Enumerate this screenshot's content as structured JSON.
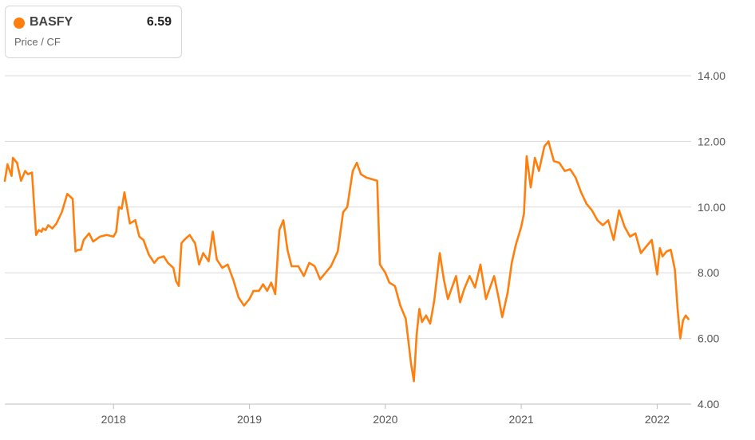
{
  "legend": {
    "ticker": "BASFY",
    "value": "6.59",
    "metric": "Price / CF",
    "color": "#ff7f0e"
  },
  "chart_data": {
    "type": "line",
    "title": "",
    "xlabel": "",
    "ylabel": "",
    "ylim": [
      4,
      14
    ],
    "xlim": [
      2017.2,
      2022.25
    ],
    "y_ticks": [
      "4.00",
      "6.00",
      "8.00",
      "10.00",
      "12.00",
      "14.00"
    ],
    "x_ticks": [
      "2018",
      "2019",
      "2020",
      "2021",
      "2022"
    ],
    "grid": true,
    "legend_position": "top-left",
    "series": [
      {
        "name": "BASFY",
        "color": "#ff7f0e",
        "x": [
          2017.2,
          2017.22,
          2017.25,
          2017.26,
          2017.29,
          2017.32,
          2017.35,
          2017.37,
          2017.4,
          2017.43,
          2017.45,
          2017.47,
          2017.48,
          2017.5,
          2017.52,
          2017.55,
          2017.58,
          2017.62,
          2017.66,
          2017.7,
          2017.72,
          2017.74,
          2017.76,
          2017.78,
          2017.82,
          2017.85,
          2017.9,
          2017.95,
          2018.0,
          2018.02,
          2018.04,
          2018.06,
          2018.08,
          2018.12,
          2018.16,
          2018.19,
          2018.22,
          2018.26,
          2018.3,
          2018.33,
          2018.37,
          2018.4,
          2018.44,
          2018.46,
          2018.48,
          2018.5,
          2018.52,
          2018.56,
          2018.6,
          2018.63,
          2018.66,
          2018.7,
          2018.73,
          2018.76,
          2018.8,
          2018.84,
          2018.88,
          2018.92,
          2018.96,
          2019.0,
          2019.03,
          2019.07,
          2019.1,
          2019.13,
          2019.16,
          2019.19,
          2019.22,
          2019.25,
          2019.28,
          2019.31,
          2019.36,
          2019.4,
          2019.44,
          2019.48,
          2019.52,
          2019.56,
          2019.6,
          2019.65,
          2019.69,
          2019.72,
          2019.76,
          2019.79,
          2019.82,
          2019.86,
          2019.9,
          2019.94,
          2019.96,
          2020.0,
          2020.03,
          2020.07,
          2020.11,
          2020.15,
          2020.19,
          2020.21,
          2020.23,
          2020.25,
          2020.27,
          2020.3,
          2020.33,
          2020.36,
          2020.4,
          2020.43,
          2020.46,
          2020.49,
          2020.52,
          2020.55,
          2020.58,
          2020.62,
          2020.66,
          2020.7,
          2020.74,
          2020.77,
          2020.8,
          2020.83,
          2020.86,
          2020.9,
          2020.93,
          2020.96,
          2021.0,
          2021.02,
          2021.04,
          2021.07,
          2021.1,
          2021.13,
          2021.17,
          2021.2,
          2021.24,
          2021.28,
          2021.32,
          2021.36,
          2021.4,
          2021.44,
          2021.48,
          2021.52,
          2021.56,
          2021.6,
          2021.64,
          2021.68,
          2021.72,
          2021.76,
          2021.8,
          2021.84,
          2021.88,
          2021.92,
          2021.96,
          2022.0,
          2022.02,
          2022.04,
          2022.07,
          2022.1,
          2022.13,
          2022.15,
          2022.17,
          2022.19,
          2022.21,
          2022.23
        ],
        "y": [
          10.8,
          11.3,
          10.95,
          11.5,
          11.35,
          10.8,
          11.1,
          11.0,
          11.05,
          9.15,
          9.3,
          9.25,
          9.35,
          9.3,
          9.45,
          9.35,
          9.5,
          9.85,
          10.4,
          10.25,
          8.65,
          8.7,
          8.7,
          9.0,
          9.2,
          8.95,
          9.1,
          9.15,
          9.1,
          9.25,
          10.0,
          9.95,
          10.45,
          9.5,
          9.6,
          9.1,
          9.0,
          8.55,
          8.3,
          8.45,
          8.5,
          8.3,
          8.15,
          7.75,
          7.6,
          8.9,
          9.0,
          9.15,
          8.9,
          8.25,
          8.6,
          8.35,
          9.25,
          8.4,
          8.15,
          8.25,
          7.8,
          7.25,
          7.0,
          7.2,
          7.45,
          7.45,
          7.65,
          7.45,
          7.7,
          7.35,
          9.3,
          9.6,
          8.7,
          8.2,
          8.2,
          7.9,
          8.3,
          8.2,
          7.8,
          8.0,
          8.2,
          8.65,
          9.85,
          10.0,
          11.1,
          11.35,
          11.0,
          10.9,
          10.85,
          10.8,
          8.25,
          8.0,
          7.7,
          7.6,
          7.0,
          6.6,
          5.2,
          4.7,
          6.1,
          6.9,
          6.5,
          6.7,
          6.45,
          7.15,
          8.6,
          7.8,
          7.2,
          7.55,
          7.9,
          7.1,
          7.5,
          7.9,
          7.55,
          8.25,
          7.2,
          7.55,
          7.9,
          7.3,
          6.65,
          7.4,
          8.3,
          8.85,
          9.4,
          9.8,
          11.55,
          10.6,
          11.5,
          11.1,
          11.85,
          12.0,
          11.4,
          11.35,
          11.1,
          11.15,
          10.9,
          10.45,
          10.1,
          9.9,
          9.6,
          9.45,
          9.6,
          9.0,
          9.9,
          9.4,
          9.1,
          9.2,
          8.6,
          8.8,
          9.0,
          7.95,
          8.75,
          8.5,
          8.65,
          8.7,
          8.1,
          6.9,
          6.0,
          6.55,
          6.7,
          6.59
        ]
      }
    ]
  }
}
